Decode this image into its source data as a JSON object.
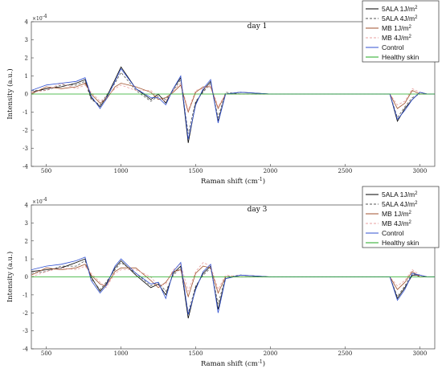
{
  "chart_data": [
    {
      "type": "line",
      "title": "day 1",
      "xlabel": "Raman shift (cm",
      "xlabel_sup": "-1",
      "xlabel_suffix": ")",
      "ylabel": "Intensity (a.u.)",
      "y_multiplier": "×10",
      "y_multiplier_exp": "-4",
      "xlim": [
        400,
        3100
      ],
      "ylim": [
        -4,
        4
      ],
      "xticks": [
        "500",
        "1000",
        "1500",
        "2000",
        "2500",
        "3000"
      ],
      "yticks": [
        "4",
        "3",
        "2",
        "1",
        "0",
        "-1",
        "-2",
        "-3",
        "-4"
      ],
      "legend_position": "top-right",
      "series": [
        {
          "name": "5ALA 1J/m",
          "name_sup": "2",
          "color": "#000000",
          "dash": "solid",
          "x": [
            400,
            500,
            600,
            700,
            760,
            800,
            860,
            900,
            960,
            1000,
            1100,
            1200,
            1250,
            1300,
            1350,
            1400,
            1450,
            1500,
            1550,
            1600,
            1650,
            1700,
            1800,
            2000,
            2500,
            2800,
            2850,
            2900,
            2950,
            3000,
            3050,
            3100
          ],
          "y": [
            0.1,
            0.3,
            0.4,
            0.6,
            0.8,
            -0.2,
            -0.7,
            -0.2,
            0.8,
            1.5,
            0.3,
            -0.3,
            0.0,
            -0.5,
            0.3,
            0.9,
            -2.7,
            -0.5,
            0.2,
            0.7,
            -1.5,
            0.0,
            0.1,
            0.0,
            0.0,
            0.0,
            -1.5,
            -0.8,
            -0.3,
            0.1,
            0.0,
            0.0
          ]
        },
        {
          "name": "5ALA 4J/m",
          "name_sup": "2",
          "color": "#555555",
          "dash": "dashed",
          "x": [
            400,
            500,
            600,
            700,
            760,
            800,
            860,
            900,
            960,
            1000,
            1100,
            1200,
            1250,
            1300,
            1350,
            1400,
            1450,
            1500,
            1550,
            1600,
            1650,
            1700,
            1800,
            2000,
            2500,
            2800,
            2850,
            2900,
            2950,
            3000,
            3050,
            3100
          ],
          "y": [
            0.2,
            0.2,
            0.5,
            0.5,
            0.7,
            -0.3,
            -0.6,
            -0.1,
            0.6,
            1.2,
            0.2,
            -0.4,
            -0.1,
            -0.3,
            0.2,
            0.8,
            -2.2,
            -0.4,
            0.1,
            0.6,
            -1.3,
            0.1,
            0.0,
            0.0,
            0.0,
            0.0,
            -1.3,
            -0.7,
            -0.2,
            0.0,
            0.0,
            0.0
          ]
        },
        {
          "name": "MB 1J/m",
          "name_sup": "2",
          "color": "#a0522d",
          "dash": "solid",
          "x": [
            400,
            500,
            600,
            700,
            760,
            800,
            860,
            900,
            960,
            1000,
            1100,
            1200,
            1250,
            1300,
            1350,
            1400,
            1450,
            1500,
            1550,
            1600,
            1650,
            1700,
            1800,
            2000,
            2500,
            2800,
            2850,
            2900,
            2950,
            3000,
            3050,
            3100
          ],
          "y": [
            0.0,
            0.4,
            0.3,
            0.4,
            0.6,
            0.0,
            -0.5,
            -0.3,
            0.4,
            0.6,
            0.4,
            0.1,
            -0.3,
            -0.2,
            0.1,
            0.5,
            -1.0,
            0.1,
            0.4,
            0.4,
            -0.8,
            0.0,
            0.0,
            0.0,
            0.0,
            0.0,
            -0.8,
            -0.5,
            0.2,
            0.0,
            0.0,
            0.0
          ]
        },
        {
          "name": "MB 4J/m",
          "name_sup": "2",
          "color": "#e8a0a0",
          "dash": "dashed",
          "x": [
            400,
            500,
            600,
            700,
            760,
            800,
            860,
            900,
            960,
            1000,
            1100,
            1200,
            1250,
            1300,
            1350,
            1400,
            1450,
            1500,
            1550,
            1600,
            1650,
            1700,
            1800,
            2000,
            2500,
            2800,
            2850,
            2900,
            2950,
            3000,
            3050,
            3100
          ],
          "y": [
            0.1,
            0.2,
            0.6,
            0.3,
            0.5,
            0.1,
            -0.4,
            -0.2,
            0.3,
            0.5,
            0.2,
            0.2,
            -0.2,
            -0.4,
            0.2,
            0.6,
            -0.9,
            0.2,
            0.3,
            0.5,
            -0.7,
            0.0,
            0.0,
            0.0,
            0.0,
            0.0,
            -0.6,
            -0.4,
            0.3,
            0.1,
            0.0,
            0.0
          ]
        },
        {
          "name": "Control",
          "color": "#3050d0",
          "dash": "solid",
          "x": [
            400,
            500,
            600,
            700,
            760,
            800,
            860,
            900,
            960,
            1000,
            1100,
            1200,
            1250,
            1300,
            1350,
            1400,
            1450,
            1500,
            1550,
            1600,
            1650,
            1700,
            1800,
            2000,
            2500,
            2800,
            2850,
            2900,
            2950,
            3000,
            3050,
            3100
          ],
          "y": [
            0.2,
            0.5,
            0.6,
            0.7,
            0.9,
            -0.1,
            -0.8,
            -0.3,
            0.7,
            1.4,
            0.3,
            -0.2,
            -0.2,
            -0.6,
            0.3,
            1.0,
            -2.5,
            -0.6,
            0.3,
            0.8,
            -1.6,
            0.0,
            0.1,
            0.0,
            0.0,
            0.0,
            -1.4,
            -0.9,
            -0.3,
            0.1,
            0.0,
            0.0
          ]
        },
        {
          "name": "Healthy skin",
          "color": "#22aa22",
          "dash": "solid",
          "x": [
            400,
            3100
          ],
          "y": [
            0.0,
            0.0
          ]
        }
      ]
    },
    {
      "type": "line",
      "title": "day 3",
      "xlabel": "Raman shift (cm",
      "xlabel_sup": "-1",
      "xlabel_suffix": ")",
      "ylabel": "Intensity (a.u.)",
      "y_multiplier": "×10",
      "y_multiplier_exp": "-4",
      "xlim": [
        400,
        3100
      ],
      "ylim": [
        -4,
        4
      ],
      "xticks": [
        "500",
        "1000",
        "1500",
        "2000",
        "2500",
        "3000"
      ],
      "yticks": [
        "4",
        "3",
        "2",
        "1",
        "0",
        "-1",
        "-2",
        "-3",
        "-4"
      ],
      "legend_position": "top-right",
      "series": [
        {
          "name": "5ALA 1J/m",
          "name_sup": "2",
          "color": "#000000",
          "dash": "solid",
          "x": [
            400,
            500,
            600,
            700,
            760,
            800,
            860,
            900,
            960,
            1000,
            1100,
            1200,
            1250,
            1300,
            1350,
            1400,
            1450,
            1500,
            1550,
            1600,
            1650,
            1700,
            1800,
            2000,
            2500,
            2800,
            2850,
            2900,
            2950,
            3000,
            3050,
            3100
          ],
          "y": [
            0.3,
            0.4,
            0.5,
            0.8,
            1.0,
            0.0,
            -0.8,
            -0.4,
            0.5,
            0.9,
            0.1,
            -0.6,
            -0.4,
            -1.0,
            0.2,
            0.6,
            -2.3,
            -0.6,
            0.2,
            0.6,
            -1.8,
            -0.1,
            0.1,
            0.0,
            0.0,
            0.0,
            -1.2,
            -0.6,
            0.1,
            0.1,
            0.0,
            0.0
          ]
        },
        {
          "name": "5ALA 4J/m",
          "name_sup": "2",
          "color": "#555555",
          "dash": "dashed",
          "x": [
            400,
            500,
            600,
            700,
            760,
            800,
            860,
            900,
            960,
            1000,
            1100,
            1200,
            1250,
            1300,
            1350,
            1400,
            1450,
            1500,
            1550,
            1600,
            1650,
            1700,
            1800,
            2000,
            2500,
            2800,
            2850,
            2900,
            2950,
            3000,
            3050,
            3100
          ],
          "y": [
            0.2,
            0.3,
            0.6,
            0.6,
            0.9,
            -0.1,
            -0.7,
            -0.3,
            0.4,
            0.8,
            0.2,
            -0.5,
            -0.3,
            -0.8,
            0.1,
            0.5,
            -2.0,
            -0.5,
            0.1,
            0.5,
            -1.5,
            0.0,
            0.1,
            0.0,
            0.0,
            0.0,
            -1.1,
            -0.5,
            0.2,
            0.0,
            0.0,
            0.0
          ]
        },
        {
          "name": "MB 1J/m",
          "name_sup": "2",
          "color": "#a0522d",
          "dash": "solid",
          "x": [
            400,
            500,
            600,
            700,
            760,
            800,
            860,
            900,
            960,
            1000,
            1100,
            1200,
            1250,
            1300,
            1350,
            1400,
            1450,
            1500,
            1550,
            1600,
            1650,
            1700,
            1800,
            2000,
            2500,
            2800,
            2850,
            2900,
            2950,
            3000,
            3050,
            3100
          ],
          "y": [
            0.1,
            0.5,
            0.4,
            0.5,
            0.7,
            0.1,
            -0.4,
            -0.5,
            0.3,
            0.5,
            0.5,
            -0.2,
            -0.6,
            -0.3,
            0.3,
            0.4,
            -1.1,
            0.2,
            0.6,
            0.5,
            -0.9,
            0.0,
            0.0,
            0.0,
            0.0,
            0.0,
            -0.7,
            -0.3,
            0.3,
            0.0,
            0.0,
            0.0
          ]
        },
        {
          "name": "MB 4J/m",
          "name_sup": "2",
          "color": "#e8a0a0",
          "dash": "dashed",
          "x": [
            400,
            500,
            600,
            700,
            760,
            800,
            860,
            900,
            960,
            1000,
            1100,
            1200,
            1250,
            1300,
            1350,
            1400,
            1450,
            1500,
            1550,
            1600,
            1650,
            1700,
            1800,
            2000,
            2500,
            2800,
            2850,
            2900,
            2950,
            3000,
            3050,
            3100
          ],
          "y": [
            0.0,
            0.3,
            0.5,
            0.4,
            0.6,
            0.2,
            -0.3,
            -0.6,
            0.2,
            0.4,
            0.4,
            0.0,
            -0.5,
            -0.4,
            0.4,
            0.7,
            -0.8,
            0.3,
            0.8,
            0.6,
            -0.7,
            0.1,
            0.0,
            0.0,
            0.0,
            0.0,
            -0.5,
            -0.2,
            0.4,
            0.1,
            0.0,
            0.0
          ]
        },
        {
          "name": "Control",
          "color": "#3050d0",
          "dash": "solid",
          "x": [
            400,
            500,
            600,
            700,
            760,
            800,
            860,
            900,
            960,
            1000,
            1100,
            1200,
            1250,
            1300,
            1350,
            1400,
            1450,
            1500,
            1550,
            1600,
            1650,
            1700,
            1800,
            2000,
            2500,
            2800,
            2850,
            2900,
            2950,
            3000,
            3050,
            3100
          ],
          "y": [
            0.4,
            0.6,
            0.7,
            0.9,
            1.1,
            -0.2,
            -0.9,
            -0.5,
            0.6,
            1.0,
            0.2,
            -0.4,
            -0.3,
            -1.2,
            0.3,
            0.8,
            -2.1,
            -0.7,
            0.3,
            0.7,
            -2.0,
            -0.1,
            0.1,
            0.0,
            0.0,
            0.0,
            -1.3,
            -0.7,
            0.2,
            0.1,
            0.0,
            0.0
          ]
        },
        {
          "name": "Healthy skin",
          "color": "#22aa22",
          "dash": "solid",
          "x": [
            400,
            3100
          ],
          "y": [
            0.0,
            0.0
          ]
        }
      ]
    }
  ]
}
